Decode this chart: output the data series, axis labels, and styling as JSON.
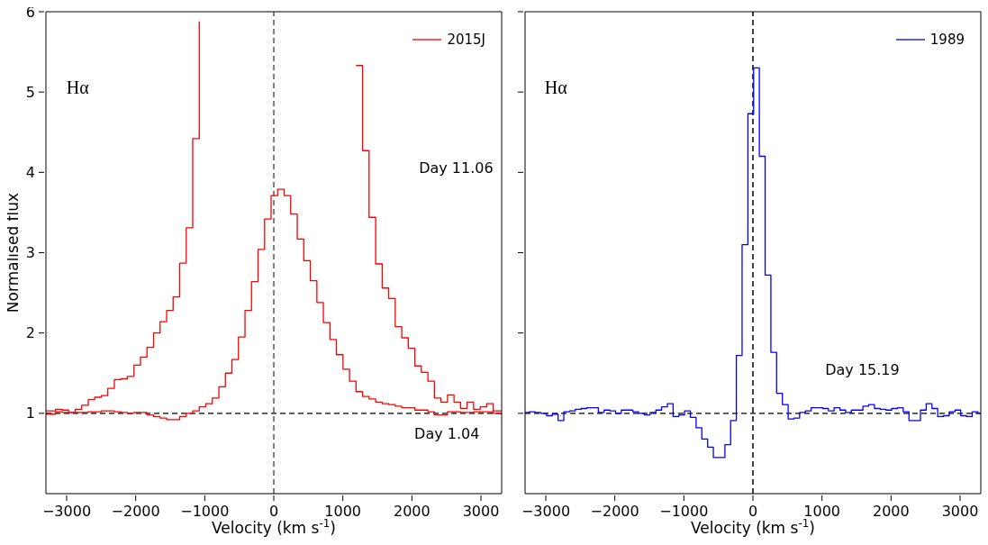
{
  "chart_data": [
    {
      "type": "step",
      "xlabel": "Velocity (km s$^{-1}$)",
      "ylabel": "Normalised flux",
      "x": [
        -3300,
        -3160,
        -3065,
        -2971,
        -2876,
        -2782,
        -2687,
        -2593,
        -2498,
        -2404,
        -2309,
        -2214,
        -2120,
        -2025,
        -1931,
        -1836,
        -1741,
        -1647,
        -1552,
        -1458,
        -1363,
        -1268,
        -1174,
        -1079,
        -985,
        -890,
        -795,
        -701,
        -606,
        -512,
        -417,
        -323,
        -228,
        -133,
        -39,
        56,
        151,
        245,
        340,
        434,
        529,
        624,
        718,
        813,
        907,
        1002,
        1097,
        1191,
        1286,
        1380,
        1475,
        1570,
        1664,
        1759,
        1853,
        1948,
        2043,
        2137,
        2232,
        2326,
        2421,
        2516,
        2610,
        2705,
        2799,
        2894,
        2989,
        3083,
        3178,
        3272,
        3300
      ],
      "series": [
        {
          "name": "2015J",
          "color": "#ff0000",
          "values": [
            1.03,
            1.05,
            1.04,
            1.01,
            1.05,
            1.1,
            1.17,
            1.2,
            1.22,
            1.31,
            1.42,
            1.43,
            1.46,
            1.6,
            1.7,
            1.82,
            2.0,
            2.14,
            2.28,
            2.45,
            2.87,
            3.31,
            4.42,
            5.88,
            null,
            null,
            null,
            null,
            null,
            null,
            null,
            null,
            null,
            null,
            null,
            null,
            null,
            null,
            null,
            null,
            null,
            null,
            null,
            null,
            null,
            null,
            null,
            5.33,
            4.27,
            3.44,
            2.86,
            2.56,
            2.43,
            2.08,
            1.94,
            1.81,
            1.59,
            1.51,
            1.4,
            1.19,
            1.14,
            1.23,
            1.14,
            1.06,
            1.14,
            1.05,
            1.08,
            1.12,
            1.03,
            1.03,
            1.03
          ]
        },
        {
          "color": "#ff0000",
          "values": [
            0.99,
            1.02,
            1.01,
            1.01,
            1.01,
            1.01,
            1.02,
            1.02,
            1.03,
            1.03,
            1.02,
            1.01,
            1.0,
            1.01,
            1.01,
            0.98,
            0.96,
            0.94,
            0.92,
            0.92,
            0.96,
            1.0,
            1.03,
            1.08,
            1.12,
            1.19,
            1.33,
            1.5,
            1.67,
            1.95,
            2.28,
            2.64,
            3.04,
            3.42,
            3.71,
            3.79,
            3.71,
            3.48,
            3.17,
            2.9,
            2.65,
            2.38,
            2.13,
            1.92,
            1.73,
            1.55,
            1.4,
            1.27,
            1.21,
            1.18,
            1.14,
            1.12,
            1.11,
            1.09,
            1.07,
            1.07,
            1.04,
            1.04,
            1.02,
            0.98,
            0.98,
            1.02,
            1.02,
            1.01,
            1.01,
            1.02,
            1.02,
            1.02,
            1.0,
            1.0,
            1.0
          ]
        }
      ],
      "xlim": [
        -3300,
        3300
      ],
      "xticks": [
        {
          "value": -3000,
          "label": "−3000"
        },
        {
          "value": -2000,
          "label": "−2000"
        },
        {
          "value": -1000,
          "label": "−1000"
        },
        0,
        1000,
        2000,
        3000
      ],
      "ylim": [
        0,
        6
      ],
      "yticks": [
        1,
        2,
        3,
        4,
        5,
        6
      ],
      "ref_lines": [
        {
          "axis": "y",
          "value": 1,
          "color": "#000000",
          "line_style": "dashed"
        },
        {
          "axis": "x",
          "value": 0,
          "color": "#555555",
          "line_style": "dashed"
        }
      ],
      "annotations": [
        "Hα",
        "Day 11.06",
        "Day 1.04"
      ],
      "legend": "top right",
      "grid": false,
      "marker": "none"
    },
    {
      "type": "step",
      "xlabel": "Velocity (km s$^{-1}$)",
      "x": [
        -3300,
        -3239,
        -3155,
        -3072,
        -2989,
        -2906,
        -2822,
        -2739,
        -2656,
        -2572,
        -2489,
        -2406,
        -2322,
        -2239,
        -2156,
        -2072,
        -1989,
        -1906,
        -1823,
        -1739,
        -1656,
        -1573,
        -1489,
        -1406,
        -1323,
        -1239,
        -1156,
        -1073,
        -990,
        -906,
        -823,
        -740,
        -656,
        -573,
        -490,
        -406,
        -323,
        -240,
        -157,
        -73,
        10,
        93,
        177,
        260,
        343,
        427,
        510,
        593,
        676,
        760,
        843,
        926,
        1010,
        1093,
        1176,
        1260,
        1343,
        1426,
        1510,
        1593,
        1676,
        1760,
        1843,
        1926,
        2010,
        2093,
        2176,
        2260,
        2343,
        2426,
        2509,
        2593,
        2676,
        2759,
        2843,
        2926,
        3009,
        3093,
        3176,
        3259,
        3300
      ],
      "series": [
        {
          "name": "1989",
          "color": "#0000ff",
          "values": [
            1.01,
            1.02,
            1.01,
            1.0,
            0.97,
            0.99,
            0.91,
            1.02,
            1.03,
            1.05,
            1.06,
            1.07,
            1.07,
            1.01,
            1.04,
            1.03,
            1.0,
            1.04,
            1.04,
            1.02,
            1.0,
            0.98,
            1.01,
            1.04,
            1.08,
            1.12,
            0.96,
            0.98,
            1.03,
            0.95,
            0.82,
            0.68,
            0.58,
            0.45,
            0.45,
            0.61,
            0.91,
            1.72,
            3.1,
            4.73,
            5.3,
            4.2,
            2.72,
            1.76,
            1.25,
            1.11,
            0.93,
            0.94,
            1.01,
            1.03,
            1.07,
            1.07,
            1.06,
            1.03,
            1.07,
            1.04,
            1.01,
            1.04,
            1.04,
            1.09,
            1.11,
            1.06,
            1.05,
            1.04,
            1.06,
            1.07,
            1.02,
            0.91,
            0.91,
            1.04,
            1.12,
            1.06,
            0.96,
            0.97,
            1.02,
            1.04,
            0.97,
            0.96,
            1.02,
            1.0,
            1.0
          ]
        }
      ],
      "xlim": [
        -3300,
        3300
      ],
      "xticks": [
        {
          "value": -3000,
          "label": "−3000"
        },
        {
          "value": -2000,
          "label": "−2000"
        },
        {
          "value": -1000,
          "label": "−1000"
        },
        0,
        1000,
        2000,
        3000
      ],
      "ylim": [
        0,
        6
      ],
      "yticks": [
        1,
        2,
        3,
        4,
        5,
        6
      ],
      "tick_labels": "x",
      "ref_lines": [
        {
          "axis": "y",
          "value": 1,
          "color": "#000000",
          "line_style": "dashed"
        },
        {
          "axis": "x",
          "value": 0,
          "color": "#000000",
          "line_style": "dashed"
        }
      ],
      "annotations": [
        "Hα",
        "Day 15.19"
      ],
      "legend": "top right",
      "grid": false,
      "marker": "none"
    }
  ]
}
